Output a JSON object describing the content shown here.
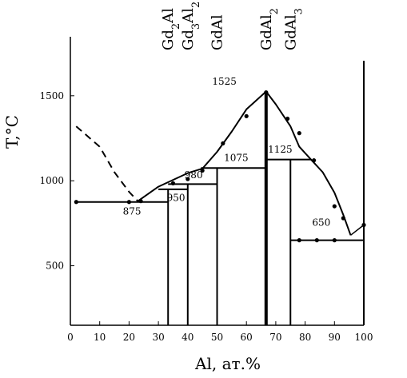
{
  "chart_data": {
    "type": "phase-diagram",
    "xlabel": "Al, ат.%",
    "ylabel": "T,°C",
    "xlim": [
      0,
      100
    ],
    "ylim": [
      150,
      1800
    ],
    "xticks": [
      "0",
      "10",
      "20",
      "30",
      "40",
      "50",
      "60",
      "70",
      "80",
      "90",
      "100"
    ],
    "yticks": [
      {
        "value": 500,
        "label": "500"
      },
      {
        "value": 1000,
        "label": "1000"
      },
      {
        "value": 1500,
        "label": "1500"
      }
    ],
    "phases": [
      {
        "label": "Gd2Al",
        "base": "Gd",
        "sub1": "2",
        "mid": "Al",
        "sub2": "",
        "x": 33.3
      },
      {
        "label": "Gd3Al2",
        "base": "Gd",
        "sub1": "3",
        "mid": "Al",
        "sub2": "2",
        "x": 40
      },
      {
        "label": "GdAl",
        "base": "GdAl",
        "sub1": "",
        "mid": "",
        "sub2": "",
        "x": 50
      },
      {
        "label": "GdAl2",
        "base": "GdAl",
        "sub1": "2",
        "mid": "",
        "sub2": "",
        "x": 66.7
      },
      {
        "label": "GdAl3",
        "base": "GdAl",
        "sub1": "3",
        "mid": "",
        "sub2": "",
        "x": 75
      }
    ],
    "temperature_labels": [
      {
        "text": "875",
        "x": 21,
        "t": 800
      },
      {
        "text": "950",
        "x": 36,
        "t": 880
      },
      {
        "text": "980",
        "x": 42,
        "t": 1015
      },
      {
        "text": "1075",
        "x": 56.5,
        "t": 1115
      },
      {
        "text": "1525",
        "x": 52.5,
        "t": 1565
      },
      {
        "text": "1125",
        "x": 71.5,
        "t": 1165
      },
      {
        "text": "650",
        "x": 85.5,
        "t": 735
      }
    ],
    "liquidus_dashed": [
      [
        2,
        1320
      ],
      [
        10,
        1200
      ],
      [
        15,
        1050
      ],
      [
        20,
        935
      ],
      [
        23,
        880
      ]
    ],
    "liquidus_solid": [
      [
        23,
        880
      ],
      [
        30,
        965
      ],
      [
        40,
        1045
      ],
      [
        45,
        1072
      ],
      [
        50,
        1170
      ],
      [
        55,
        1290
      ],
      [
        60,
        1420
      ],
      [
        66.7,
        1525
      ],
      [
        70,
        1450
      ],
      [
        75,
        1320
      ],
      [
        78,
        1200
      ],
      [
        82,
        1125
      ],
      [
        86,
        1050
      ],
      [
        90,
        930
      ],
      [
        93,
        800
      ],
      [
        95.5,
        680
      ]
    ],
    "liquidus_tail": [
      [
        95.5,
        680
      ],
      [
        100,
        740
      ]
    ],
    "horizontal_lines": [
      {
        "x1": 2,
        "x2": 33.3,
        "t": 875
      },
      {
        "x1": 30,
        "x2": 40,
        "t": 950
      },
      {
        "x1": 33.3,
        "x2": 50,
        "t": 980
      },
      {
        "x1": 44.5,
        "x2": 66.7,
        "t": 1075
      },
      {
        "x1": 66.7,
        "x2": 82,
        "t": 1125
      },
      {
        "x1": 75,
        "x2": 100,
        "t": 650
      }
    ],
    "vertical_lines": [
      {
        "x": 33.3,
        "tmin": 150,
        "tmax": 950,
        "bold": false
      },
      {
        "x": 40,
        "tmin": 150,
        "tmax": 980,
        "bold": false
      },
      {
        "x": 50,
        "tmin": 150,
        "tmax": 1075,
        "bold": false
      },
      {
        "x": 66.7,
        "tmin": 150,
        "tmax": 1525,
        "bold": true
      },
      {
        "x": 75,
        "tmin": 150,
        "tmax": 1125,
        "bold": false
      }
    ],
    "data_points": [
      [
        2,
        875
      ],
      [
        20,
        875
      ],
      [
        24,
        880
      ],
      [
        35,
        985
      ],
      [
        40,
        1010
      ],
      [
        45,
        1060
      ],
      [
        52,
        1220
      ],
      [
        60,
        1380
      ],
      [
        66.7,
        1520
      ],
      [
        74,
        1365
      ],
      [
        78,
        1280
      ],
      [
        83,
        1120
      ],
      [
        90,
        850
      ],
      [
        93,
        780
      ],
      [
        78,
        650
      ],
      [
        84,
        650
      ],
      [
        90,
        650
      ],
      [
        100,
        740
      ]
    ]
  }
}
